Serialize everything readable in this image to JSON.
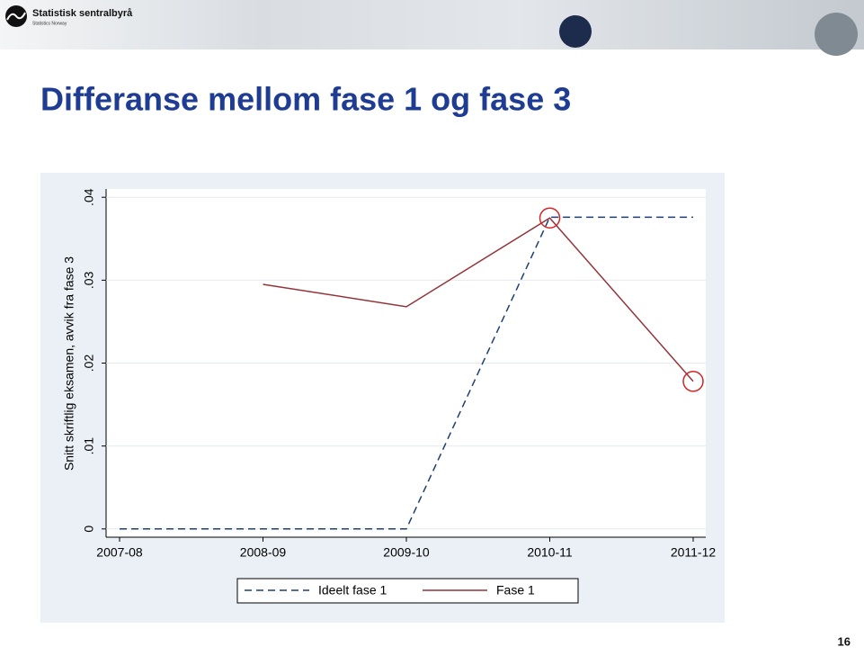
{
  "header": {
    "logo_name": "Statistisk sentralbyrå",
    "logo_sub": "Statistics Norway"
  },
  "slide_title": "Differanse mellom fase 1 og fase 3",
  "page_number": "16",
  "chart_data": {
    "type": "line",
    "y_label": "Snitt skriftlig eksamen, avvik fra fase 3",
    "categories": [
      "2007-08",
      "2008-09",
      "2009-10",
      "2010-11",
      "2011-12"
    ],
    "series": [
      {
        "name": "Ideelt fase 1",
        "color": "#1f3f6e",
        "dash": true,
        "values": [
          0,
          0,
          0,
          0.0376,
          0.0376
        ]
      },
      {
        "name": "Fase 1",
        "color": "#93343a",
        "dash": false,
        "values": [
          null,
          0.0295,
          0.0268,
          0.0375,
          0.0178
        ],
        "circled": [
          3,
          4
        ]
      }
    ],
    "ylim": [
      -0.001,
      0.041
    ],
    "yticks": [
      0,
      {
        "value": 0.01,
        "label": ".01"
      },
      {
        "value": 0.02,
        "label": ".02"
      },
      {
        "value": 0.03,
        "label": ".03"
      },
      {
        "value": 0.04,
        "label": ".04"
      }
    ],
    "grid": true
  }
}
